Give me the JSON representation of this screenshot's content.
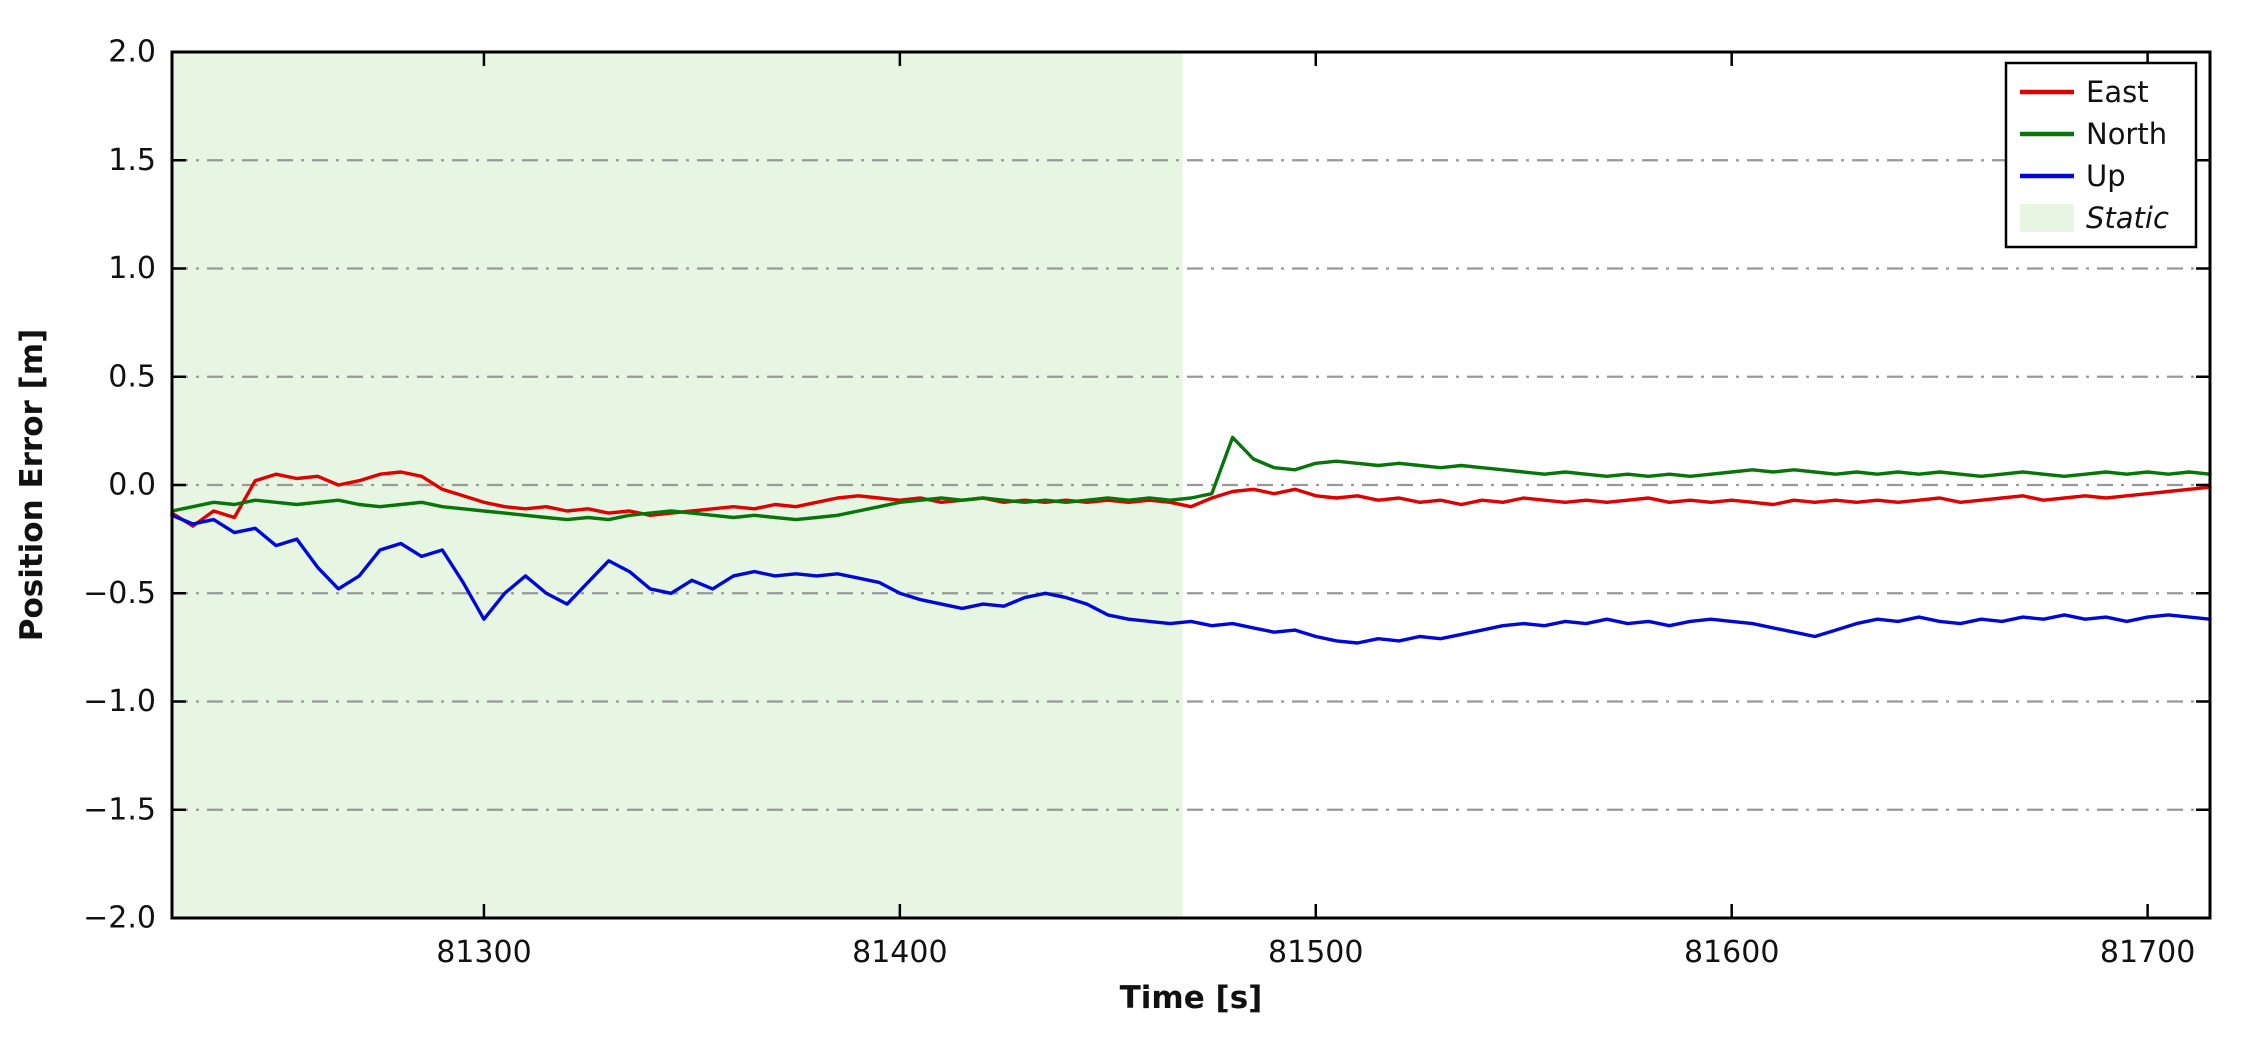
{
  "chart_data": {
    "type": "line",
    "title": "",
    "xlabel": "Time [s]",
    "ylabel": "Position Error [m]",
    "xlim": [
      81225,
      81715
    ],
    "ylim": [
      -2.0,
      2.0
    ],
    "xticks": [
      81300,
      81400,
      81500,
      81600,
      81700
    ],
    "yticks": [
      -2.0,
      -1.5,
      -1.0,
      -0.5,
      0.0,
      0.5,
      1.0,
      1.5,
      2.0
    ],
    "grid": {
      "axis": "y",
      "style": "dash-dot",
      "color": "#999999"
    },
    "legend": {
      "position": "upper right",
      "entries": [
        "East",
        "North",
        "Up",
        "Static"
      ]
    },
    "static_region": {
      "label": "Static",
      "x_start": 81225,
      "x_end": 81468,
      "color": "#e6f6e3"
    },
    "x_start": 81225,
    "x_step": 5,
    "series": [
      {
        "name": "East",
        "color": "#df0000",
        "values": [
          -0.13,
          -0.19,
          -0.12,
          -0.15,
          0.02,
          0.05,
          0.03,
          0.04,
          0.0,
          0.02,
          0.05,
          0.06,
          0.04,
          -0.02,
          -0.05,
          -0.08,
          -0.1,
          -0.11,
          -0.1,
          -0.12,
          -0.11,
          -0.13,
          -0.12,
          -0.14,
          -0.13,
          -0.12,
          -0.11,
          -0.1,
          -0.11,
          -0.09,
          -0.1,
          -0.08,
          -0.06,
          -0.05,
          -0.06,
          -0.07,
          -0.06,
          -0.08,
          -0.07,
          -0.06,
          -0.08,
          -0.07,
          -0.08,
          -0.07,
          -0.08,
          -0.07,
          -0.08,
          -0.07,
          -0.08,
          -0.1,
          -0.06,
          -0.03,
          -0.02,
          -0.04,
          -0.02,
          -0.05,
          -0.06,
          -0.05,
          -0.07,
          -0.06,
          -0.08,
          -0.07,
          -0.09,
          -0.07,
          -0.08,
          -0.06,
          -0.07,
          -0.08,
          -0.07,
          -0.08,
          -0.07,
          -0.06,
          -0.08,
          -0.07,
          -0.08,
          -0.07,
          -0.08,
          -0.09,
          -0.07,
          -0.08,
          -0.07,
          -0.08,
          -0.07,
          -0.08,
          -0.07,
          -0.06,
          -0.08,
          -0.07,
          -0.06,
          -0.05,
          -0.07,
          -0.06,
          -0.05,
          -0.06,
          -0.05,
          -0.04,
          -0.03,
          -0.02,
          -0.01
        ]
      },
      {
        "name": "North",
        "color": "#087508",
        "values": [
          -0.12,
          -0.1,
          -0.08,
          -0.09,
          -0.07,
          -0.08,
          -0.09,
          -0.08,
          -0.07,
          -0.09,
          -0.1,
          -0.09,
          -0.08,
          -0.1,
          -0.11,
          -0.12,
          -0.13,
          -0.14,
          -0.15,
          -0.16,
          -0.15,
          -0.16,
          -0.14,
          -0.13,
          -0.12,
          -0.13,
          -0.14,
          -0.15,
          -0.14,
          -0.15,
          -0.16,
          -0.15,
          -0.14,
          -0.12,
          -0.1,
          -0.08,
          -0.07,
          -0.06,
          -0.07,
          -0.06,
          -0.07,
          -0.08,
          -0.07,
          -0.08,
          -0.07,
          -0.06,
          -0.07,
          -0.06,
          -0.07,
          -0.06,
          -0.04,
          0.22,
          0.12,
          0.08,
          0.07,
          0.1,
          0.11,
          0.1,
          0.09,
          0.1,
          0.09,
          0.08,
          0.09,
          0.08,
          0.07,
          0.06,
          0.05,
          0.06,
          0.05,
          0.04,
          0.05,
          0.04,
          0.05,
          0.04,
          0.05,
          0.06,
          0.07,
          0.06,
          0.07,
          0.06,
          0.05,
          0.06,
          0.05,
          0.06,
          0.05,
          0.06,
          0.05,
          0.04,
          0.05,
          0.06,
          0.05,
          0.04,
          0.05,
          0.06,
          0.05,
          0.06,
          0.05,
          0.06,
          0.05
        ]
      },
      {
        "name": "Up",
        "color": "#0008d7",
        "values": [
          -0.14,
          -0.18,
          -0.16,
          -0.22,
          -0.2,
          -0.28,
          -0.25,
          -0.38,
          -0.48,
          -0.42,
          -0.3,
          -0.27,
          -0.33,
          -0.3,
          -0.45,
          -0.62,
          -0.5,
          -0.42,
          -0.5,
          -0.55,
          -0.45,
          -0.35,
          -0.4,
          -0.48,
          -0.5,
          -0.44,
          -0.48,
          -0.42,
          -0.4,
          -0.42,
          -0.41,
          -0.42,
          -0.41,
          -0.43,
          -0.45,
          -0.5,
          -0.53,
          -0.55,
          -0.57,
          -0.55,
          -0.56,
          -0.52,
          -0.5,
          -0.52,
          -0.55,
          -0.6,
          -0.62,
          -0.63,
          -0.64,
          -0.63,
          -0.65,
          -0.64,
          -0.66,
          -0.68,
          -0.67,
          -0.7,
          -0.72,
          -0.73,
          -0.71,
          -0.72,
          -0.7,
          -0.71,
          -0.69,
          -0.67,
          -0.65,
          -0.64,
          -0.65,
          -0.63,
          -0.64,
          -0.62,
          -0.64,
          -0.63,
          -0.65,
          -0.63,
          -0.62,
          -0.63,
          -0.64,
          -0.66,
          -0.68,
          -0.7,
          -0.67,
          -0.64,
          -0.62,
          -0.63,
          -0.61,
          -0.63,
          -0.64,
          -0.62,
          -0.63,
          -0.61,
          -0.62,
          -0.6,
          -0.62,
          -0.61,
          -0.63,
          -0.61,
          -0.6,
          -0.61,
          -0.62
        ]
      }
    ]
  }
}
